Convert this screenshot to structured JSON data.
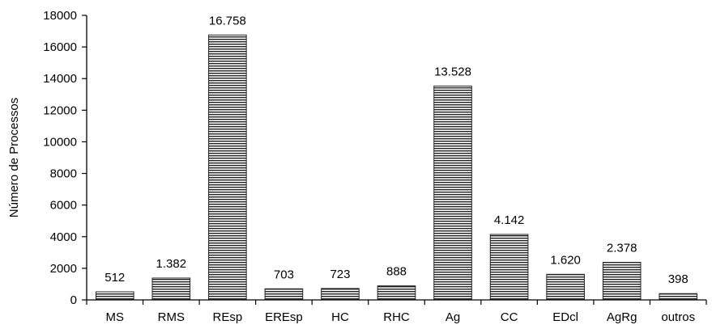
{
  "chart_data": {
    "type": "bar",
    "title": "",
    "xlabel": "",
    "ylabel": "Número de Processos",
    "ylim": [
      0,
      18000
    ],
    "yticks": [
      0,
      2000,
      4000,
      6000,
      8000,
      10000,
      12000,
      14000,
      16000,
      18000
    ],
    "categories": [
      "MS",
      "RMS",
      "REsp",
      "EREsp",
      "HC",
      "RHC",
      "Ag",
      "CC",
      "EDcl",
      "AgRg",
      "outros"
    ],
    "values": [
      512,
      1382,
      16758,
      703,
      723,
      888,
      13528,
      4142,
      1620,
      2378,
      398
    ],
    "data_labels": [
      "512",
      "1.382",
      "16.758",
      "703",
      "723",
      "888",
      "13.528",
      "4.142",
      "1.620",
      "2.378",
      "398"
    ],
    "grid": false,
    "legend": "none",
    "bar_style": "horizontal-hatched",
    "colors": {
      "bar_fill": "#ffffff",
      "bar_hatch": "#222222",
      "axis": "#000000",
      "text": "#000000"
    }
  }
}
